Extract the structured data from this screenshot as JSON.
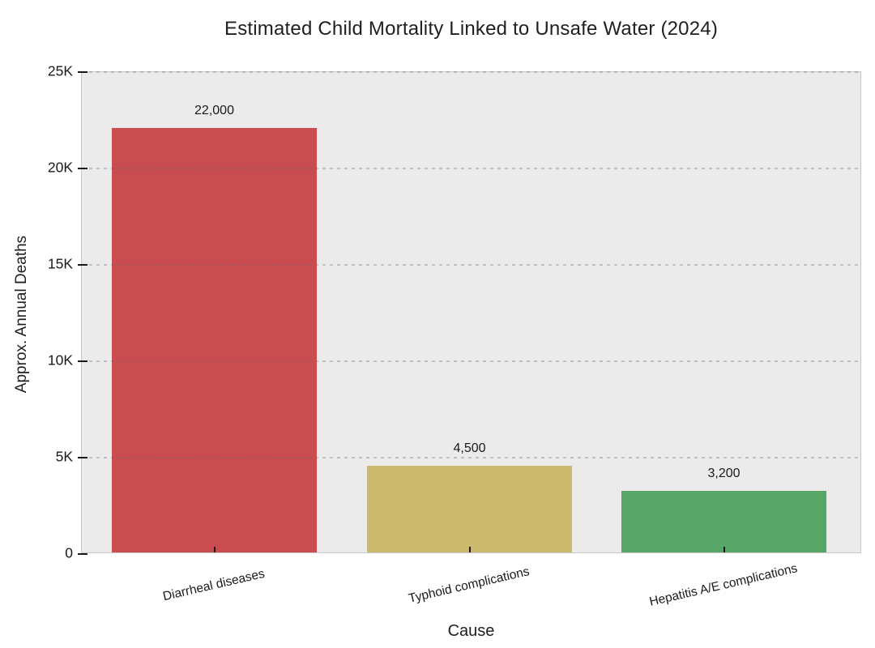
{
  "chart_data": {
    "type": "bar",
    "title": "Estimated Child Mortality Linked to Unsafe Water (2024)",
    "xlabel": "Cause",
    "ylabel": "Approx. Annual Deaths",
    "categories": [
      "Diarrheal diseases",
      "Typhoid complications",
      "Hepatitis A/E complications"
    ],
    "values": [
      22000,
      4500,
      3200
    ],
    "value_labels": [
      "22,000",
      "4,500",
      "3,200"
    ],
    "bar_colors": [
      "#c84c50",
      "#cbb96d",
      "#57a567"
    ],
    "ylim": [
      0,
      25000
    ],
    "yticks": [
      0,
      5000,
      10000,
      15000,
      20000,
      25000
    ],
    "ytick_labels": [
      "0",
      "5K",
      "10K",
      "15K",
      "20K",
      "25K"
    ],
    "grid": "horizontal-dashed",
    "legend": "none",
    "plot_background": "#ebebeb",
    "figure_background": "#ffffff",
    "x_tick_rotation_deg": -13
  }
}
